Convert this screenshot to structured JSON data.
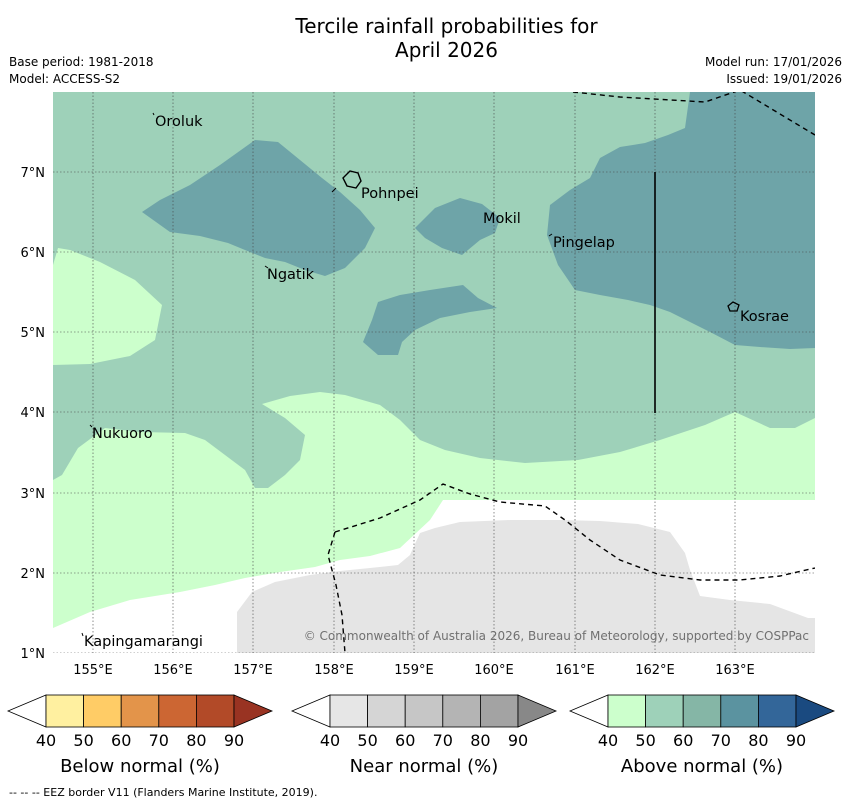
{
  "title": {
    "line1": "Tercile rainfall probabilities for",
    "line2": "April 2026"
  },
  "meta": {
    "base_period": "Base period: 1981-2018",
    "model": "Model: ACCESS-S2",
    "model_run": "Model run: 17/01/2026",
    "issued": "Issued: 19/01/2026"
  },
  "map": {
    "x_ticks": [
      "155°E",
      "156°E",
      "157°E",
      "158°E",
      "159°E",
      "160°E",
      "161°E",
      "162°E",
      "163°E"
    ],
    "y_ticks": [
      "7°N",
      "6°N",
      "5°N",
      "4°N",
      "3°N",
      "2°N",
      "1°N"
    ],
    "places": [
      "Oroluk",
      "Pohnpei",
      "Mokil",
      "Pingelap",
      "Ngatik",
      "Kosrae",
      "Nukuoro",
      "Kapingamarangi"
    ],
    "copyright": "© Commonwealth of Australia 2026, Bureau of Meteorology, supported by COSPPac",
    "colors": {
      "above_50": "#ccffcc",
      "above_60": "#9ed1b9",
      "above_70": "#6ea4a8",
      "near_40": "#e5e5e5",
      "eez": "#000000"
    }
  },
  "colorbars": {
    "ticks": [
      "40",
      "50",
      "60",
      "70",
      "80",
      "90"
    ],
    "below": {
      "label": "Below normal (%)",
      "colors": [
        "#fff0a0",
        "#ffcc66",
        "#e3944a",
        "#cc6633",
        "#b24a28",
        "#993322"
      ]
    },
    "near": {
      "label": "Near normal (%)",
      "colors": [
        "#e6e6e6",
        "#d5d5d5",
        "#c6c6c6",
        "#b4b4b4",
        "#a3a3a3",
        "#888888"
      ]
    },
    "above": {
      "label": "Above normal (%)",
      "colors": [
        "#ccffcc",
        "#9ed1b9",
        "#85b6a6",
        "#5b93a0",
        "#336699",
        "#1a4a80"
      ]
    }
  },
  "footer": "-- -- -- EEZ border V11 (Flanders Marine Institute, 2019)."
}
